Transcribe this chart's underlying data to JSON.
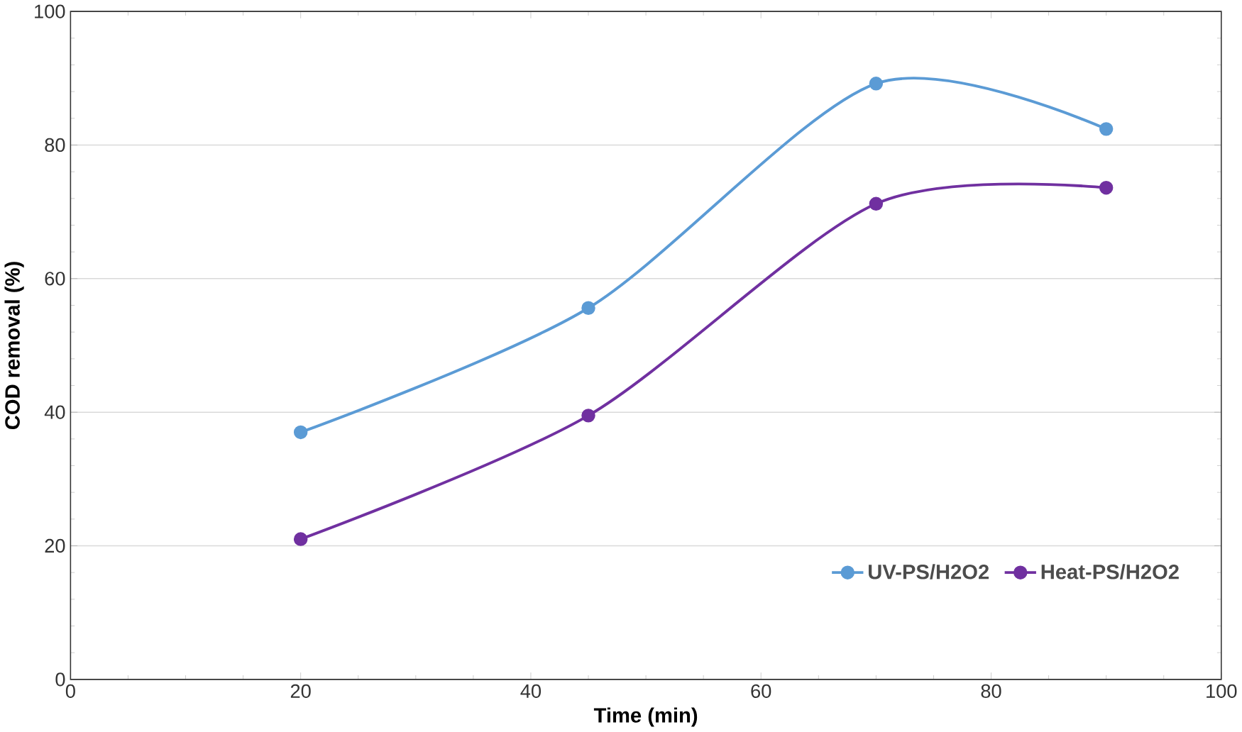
{
  "chart_data": {
    "type": "line",
    "xlabel": "Time (min)",
    "ylabel": "COD removal (%)",
    "x": [
      20,
      45,
      70,
      90
    ],
    "series": [
      {
        "name": "UV-PS/H2O2",
        "color": "#5b9bd5",
        "values": [
          37,
          55.6,
          89.2,
          82.4
        ]
      },
      {
        "name": "Heat-PS/H2O2",
        "color": "#7030a0",
        "values": [
          21,
          39.5,
          71.2,
          73.6
        ]
      }
    ],
    "xlim": [
      0,
      100
    ],
    "ylim": [
      0,
      100
    ],
    "xticks": [
      0,
      20,
      40,
      60,
      80,
      100
    ],
    "yticks": [
      0,
      20,
      40,
      60,
      80,
      100
    ],
    "grid": "y",
    "legend": "bottom right",
    "marker": "circle",
    "line_style": "solid"
  }
}
